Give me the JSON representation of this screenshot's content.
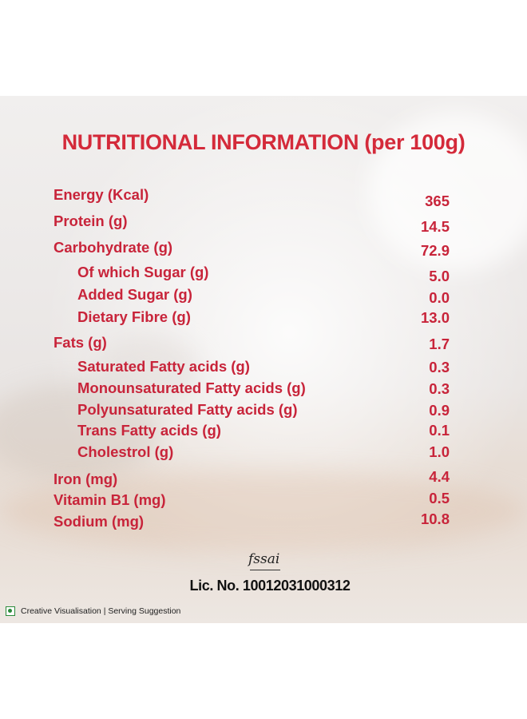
{
  "title": "NUTRITIONAL INFORMATION (per 100g)",
  "nutrients": [
    {
      "label": "Energy (Kcal)",
      "value": "365"
    },
    {
      "label": "Protein (g)",
      "value": "14.5"
    },
    {
      "label": "Carbohydrate  (g)",
      "value": "72.9"
    },
    {
      "label": "Of which Sugar  (g)",
      "value": "5.0"
    },
    {
      "label": "Added Sugar  (g)",
      "value": "0.0"
    },
    {
      "label": "Dietary Fibre  (g)",
      "value": "13.0"
    },
    {
      "label": "Fats  (g)",
      "value": "1.7"
    },
    {
      "label": "Saturated Fatty acids  (g)",
      "value": "0.3"
    },
    {
      "label": "Monounsaturated Fatty acids  (g)",
      "value": "0.3"
    },
    {
      "label": "Polyunsaturated Fatty acids  (g)",
      "value": "0.9"
    },
    {
      "label": "Trans Fatty acids  (g)",
      "value": "0.1"
    },
    {
      "label": "Cholestrol  (g)",
      "value": "1.0"
    },
    {
      "label": "Iron  (mg)",
      "value": "4.4"
    },
    {
      "label": "Vitamin B1  (mg)",
      "value": "0.5"
    },
    {
      "label": "Sodium (mg)",
      "value": "10.8"
    }
  ],
  "fssai_logo_text": "fssai",
  "license": "Lic. No. 10012031000312",
  "disclaimer": "Creative Visualisation | Serving Suggestion",
  "veg_mark_icon": "veg-mark-icon",
  "colors": {
    "accent": "#d42a3a",
    "text_red": "#c8243a"
  }
}
